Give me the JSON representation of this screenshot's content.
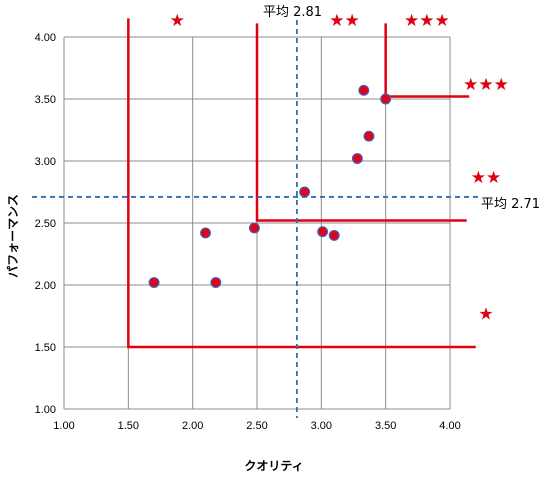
{
  "chart_data": {
    "type": "scatter",
    "title": "",
    "xlabel": "クオリティ",
    "ylabel": "パフォーマンス",
    "xlim": [
      1.0,
      4.0
    ],
    "ylim": [
      1.0,
      4.0
    ],
    "xticks": [
      "1.00",
      "1.50",
      "2.00",
      "2.50",
      "3.00",
      "3.50",
      "4.00"
    ],
    "yticks": [
      "1.00",
      "1.50",
      "2.00",
      "2.50",
      "3.00",
      "3.50",
      "4.00"
    ],
    "grid": true,
    "points": [
      {
        "x": 1.7,
        "y": 2.02
      },
      {
        "x": 2.1,
        "y": 2.42
      },
      {
        "x": 2.18,
        "y": 2.02
      },
      {
        "x": 2.48,
        "y": 2.46
      },
      {
        "x": 2.87,
        "y": 2.75
      },
      {
        "x": 3.01,
        "y": 2.43
      },
      {
        "x": 3.1,
        "y": 2.4
      },
      {
        "x": 3.28,
        "y": 3.02
      },
      {
        "x": 3.33,
        "y": 3.57
      },
      {
        "x": 3.37,
        "y": 3.2
      },
      {
        "x": 3.5,
        "y": 3.5
      }
    ],
    "avg_x": {
      "value": 2.81,
      "label": "平均 2.81"
    },
    "avg_y": {
      "value": 2.71,
      "label": "平均 2.71"
    },
    "tier_lines": [
      {
        "x": 1.5,
        "y": 1.5,
        "x_end": 4.2,
        "y_top": 4.15
      },
      {
        "x": 2.5,
        "y": 2.52,
        "x_end": 4.13,
        "y_top": 4.11
      },
      {
        "x": 3.5,
        "y": 3.52,
        "x_end": 4.15,
        "y_top": 4.11
      }
    ],
    "top_stars": [
      {
        "x": 1.88,
        "text": "★"
      },
      {
        "x": 3.18,
        "text": "★★"
      },
      {
        "x": 3.82,
        "text": "★★★"
      }
    ],
    "right_stars": [
      {
        "y": 3.62,
        "text": "★★★"
      },
      {
        "y": 2.87,
        "text": "★★"
      },
      {
        "y": 1.77,
        "text": "★"
      }
    ],
    "colors": {
      "point_fill": "#e4001b",
      "point_stroke": "#3f5fa8",
      "tier_line": "#e00010",
      "avg_line": "#2f6faf",
      "grid": "#8c8c8c",
      "star": "#e0000f"
    }
  }
}
